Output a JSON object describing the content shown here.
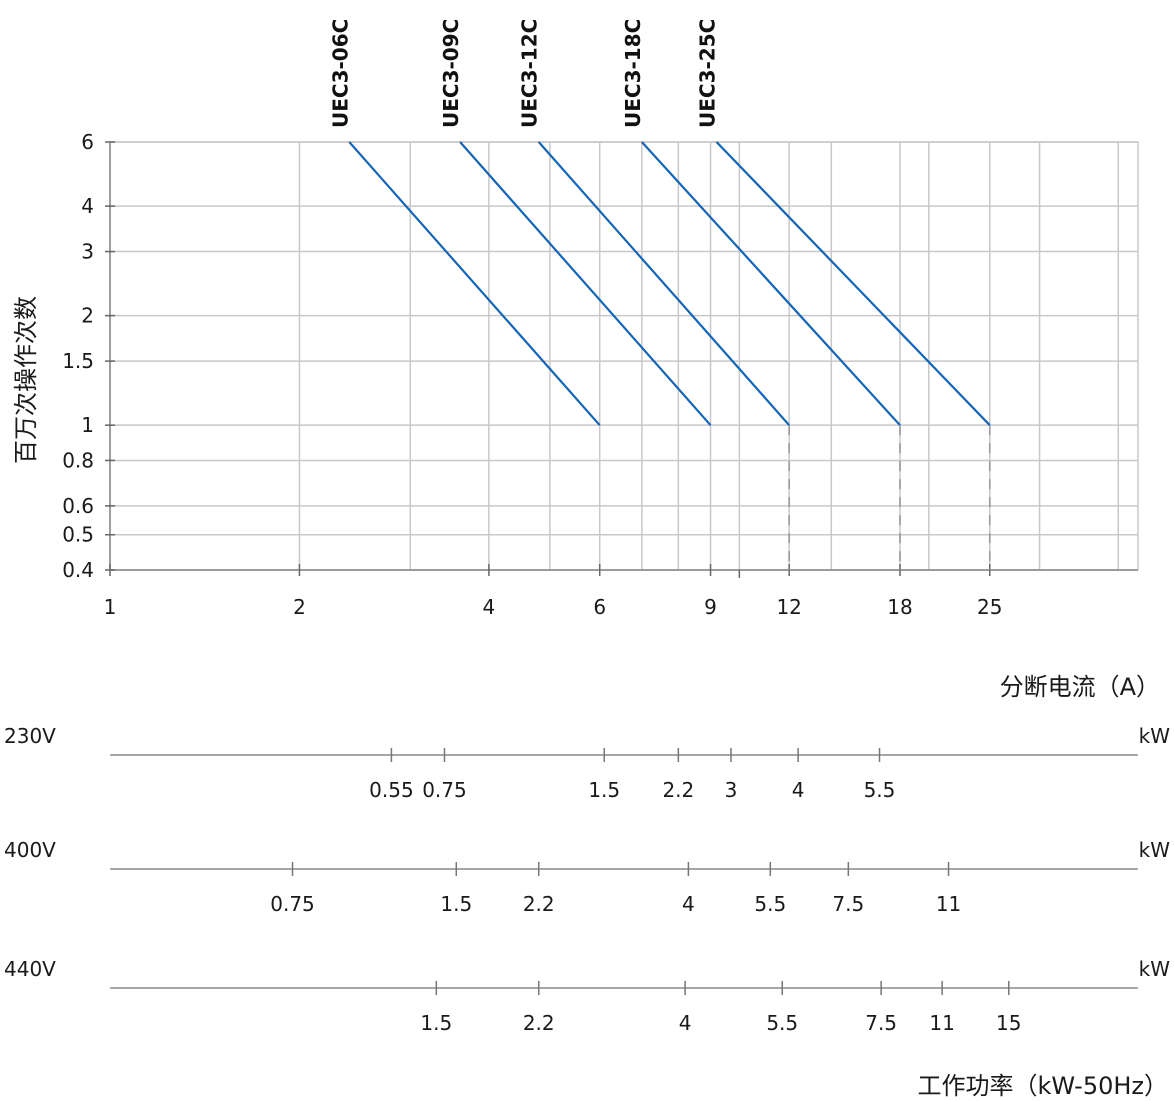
{
  "chart_data": {
    "type": "line",
    "ylabel": "百万次操作次数",
    "xlabel": "分断电流（A）",
    "x_scale": "log",
    "y_scale": "log",
    "xlim": [
      1,
      43
    ],
    "ylim": [
      0.4,
      6
    ],
    "grid": true,
    "x_ticks": [
      1,
      2,
      4,
      6,
      9,
      12,
      18,
      25
    ],
    "x_tick_labels": [
      "1",
      "2",
      "4",
      "6",
      "9",
      "12",
      "18",
      "25"
    ],
    "x_grid": [
      2,
      3,
      4,
      5,
      6,
      7,
      8,
      9,
      10,
      12,
      14,
      18,
      20,
      25,
      30,
      40
    ],
    "y_ticks": [
      0.4,
      0.5,
      0.6,
      0.8,
      1,
      1.5,
      2,
      3,
      4,
      6
    ],
    "y_tick_labels": [
      "0.4",
      "0.5",
      "0.6",
      "0.8",
      "1",
      "1.5",
      "2",
      "3",
      "4",
      "6"
    ],
    "series": [
      {
        "name": "UEC3-06C",
        "x": [
          2.4,
          6
        ],
        "y": [
          6,
          1
        ],
        "dashed_drop_to": null
      },
      {
        "name": "UEC3-09C",
        "x": [
          3.6,
          9
        ],
        "y": [
          6,
          1
        ],
        "dashed_drop_to": null
      },
      {
        "name": "UEC3-12C",
        "x": [
          4.8,
          12
        ],
        "y": [
          6,
          1
        ],
        "dashed_drop_to": 0.4
      },
      {
        "name": "UEC3-18C",
        "x": [
          7.0,
          18
        ],
        "y": [
          6,
          1
        ],
        "dashed_drop_to": 0.4
      },
      {
        "name": "UEC3-25C",
        "x": [
          9.2,
          25
        ],
        "y": [
          6,
          1
        ],
        "dashed_drop_to": 0.4
      }
    ],
    "line_color": "#1565b5",
    "grid_color": "#c8c8c8"
  },
  "power_scales": {
    "unit_label": "kW",
    "title": "工作功率（kW-50Hz）",
    "rows": [
      {
        "voltage": "230V",
        "ticks": [
          {
            "label": "0.55",
            "at": 2.8
          },
          {
            "label": "0.75",
            "at": 3.4
          },
          {
            "label": "1.5",
            "at": 6.1
          },
          {
            "label": "2.2",
            "at": 8.0
          },
          {
            "label": "3",
            "at": 9.7
          },
          {
            "label": "4",
            "at": 12.4
          },
          {
            "label": "5.5",
            "at": 16.7
          }
        ]
      },
      {
        "voltage": "400V",
        "ticks": [
          {
            "label": "0.75",
            "at": 1.95
          },
          {
            "label": "1.5",
            "at": 3.55
          },
          {
            "label": "2.2",
            "at": 4.8
          },
          {
            "label": "4",
            "at": 8.3
          },
          {
            "label": "5.5",
            "at": 11.2
          },
          {
            "label": "7.5",
            "at": 14.9
          },
          {
            "label": "11",
            "at": 21.5
          }
        ]
      },
      {
        "voltage": "440V",
        "ticks": [
          {
            "label": "1.5",
            "at": 3.3
          },
          {
            "label": "2.2",
            "at": 4.8
          },
          {
            "label": "4",
            "at": 8.2
          },
          {
            "label": "5.5",
            "at": 11.7
          },
          {
            "label": "7.5",
            "at": 16.8
          },
          {
            "label": "11",
            "at": 21.0
          },
          {
            "label": "15",
            "at": 26.8
          }
        ]
      }
    ]
  }
}
